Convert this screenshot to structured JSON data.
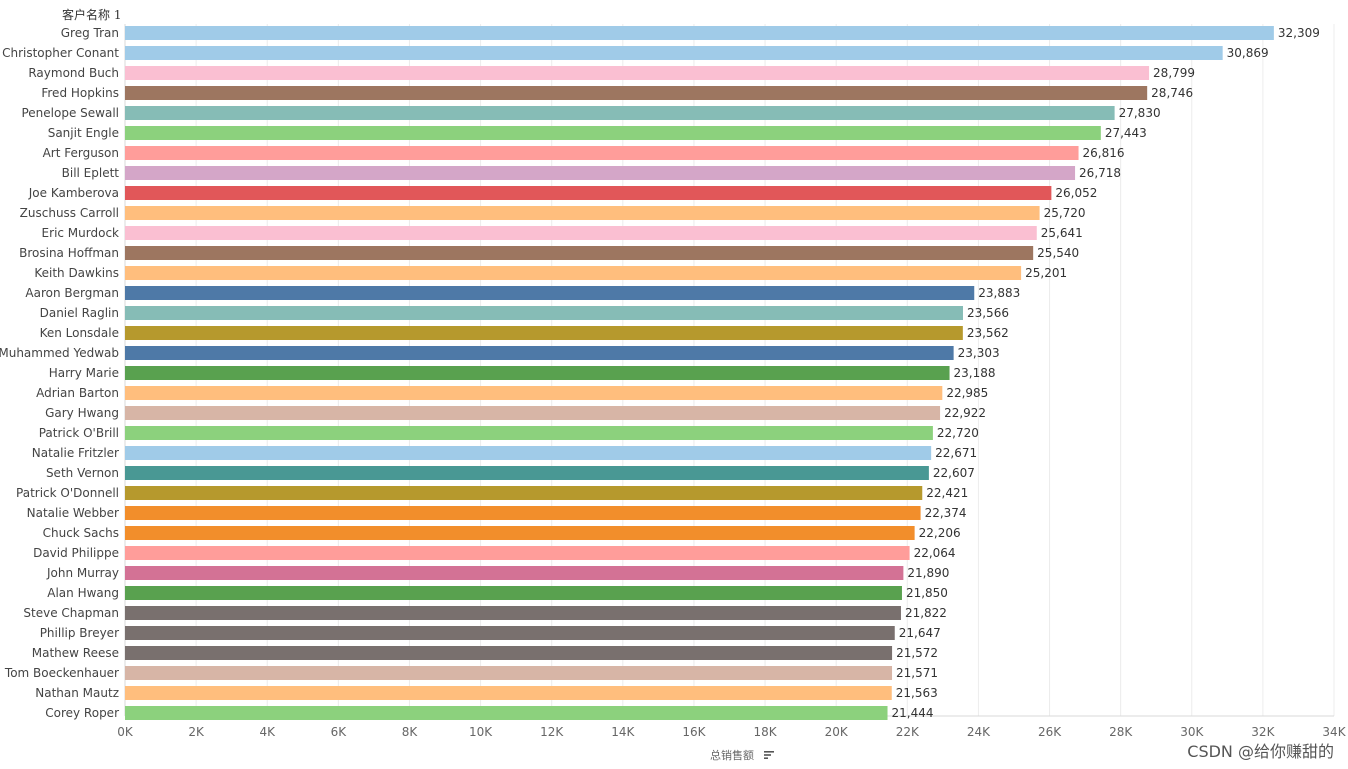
{
  "chart_data": {
    "type": "bar",
    "orientation": "horizontal",
    "title": "",
    "ylabel": "客户名称 1",
    "xlabel": "总销售额",
    "xlim": [
      0,
      34000
    ],
    "xticks": [
      0,
      2000,
      4000,
      6000,
      8000,
      10000,
      12000,
      14000,
      16000,
      18000,
      20000,
      22000,
      24000,
      26000,
      28000,
      30000,
      32000,
      34000
    ],
    "xtick_labels": [
      "0K",
      "2K",
      "4K",
      "6K",
      "8K",
      "10K",
      "12K",
      "14K",
      "16K",
      "18K",
      "20K",
      "22K",
      "24K",
      "26K",
      "28K",
      "30K",
      "32K",
      "34K"
    ],
    "grid": "vertical",
    "categories": [
      "Greg Tran",
      "Christopher Conant",
      "Raymond Buch",
      "Fred Hopkins",
      "Penelope Sewall",
      "Sanjit Engle",
      "Art Ferguson",
      "Bill Eplett",
      "Joe Kamberova",
      "Zuschuss Carroll",
      "Eric Murdock",
      "Brosina Hoffman",
      "Keith Dawkins",
      "Aaron Bergman",
      "Daniel Raglin",
      "Ken Lonsdale",
      "Muhammed Yedwab",
      "Harry Marie",
      "Adrian Barton",
      "Gary Hwang",
      "Patrick O'Brill",
      "Natalie Fritzler",
      "Seth Vernon",
      "Patrick O'Donnell",
      "Natalie Webber",
      "Chuck Sachs",
      "David Philippe",
      "John Murray",
      "Alan Hwang",
      "Steve Chapman",
      "Phillip Breyer",
      "Mathew Reese",
      "Tom Boeckenhauer",
      "Nathan Mautz",
      "Corey Roper"
    ],
    "values": [
      32309,
      30869,
      28799,
      28746,
      27830,
      27443,
      26816,
      26718,
      26052,
      25720,
      25641,
      25540,
      25201,
      23883,
      23566,
      23562,
      23303,
      23188,
      22985,
      22922,
      22720,
      22671,
      22607,
      22421,
      22374,
      22206,
      22064,
      21890,
      21850,
      21822,
      21647,
      21572,
      21571,
      21563,
      21444
    ],
    "value_labels": [
      "32,309",
      "30,869",
      "28,799",
      "28,746",
      "27,830",
      "27,443",
      "26,816",
      "26,718",
      "26,052",
      "25,720",
      "25,641",
      "25,540",
      "25,201",
      "23,883",
      "23,566",
      "23,562",
      "23,303",
      "23,188",
      "22,985",
      "22,922",
      "22,720",
      "22,671",
      "22,607",
      "22,421",
      "22,374",
      "22,206",
      "22,064",
      "21,890",
      "21,850",
      "21,822",
      "21,647",
      "21,572",
      "21,571",
      "21,563",
      "21,444"
    ],
    "colors": [
      "#a0cbe8",
      "#a0cbe8",
      "#fabfd2",
      "#9d7660",
      "#86bcb6",
      "#8cd17d",
      "#ff9d9a",
      "#d4a6c8",
      "#e15759",
      "#ffbe7d",
      "#fabfd2",
      "#9d7660",
      "#ffbe7d",
      "#4e79a7",
      "#86bcb6",
      "#b6992d",
      "#4e79a7",
      "#59a14f",
      "#ffbe7d",
      "#d7b5a6",
      "#8cd17d",
      "#a0cbe8",
      "#499894",
      "#b6992d",
      "#f28e2b",
      "#f28e2b",
      "#ff9d9a",
      "#d37295",
      "#59a14f",
      "#79706e",
      "#79706e",
      "#79706e",
      "#d7b5a6",
      "#ffbe7d",
      "#8cd17d"
    ]
  },
  "watermark": "CSDN @给你赚甜的"
}
